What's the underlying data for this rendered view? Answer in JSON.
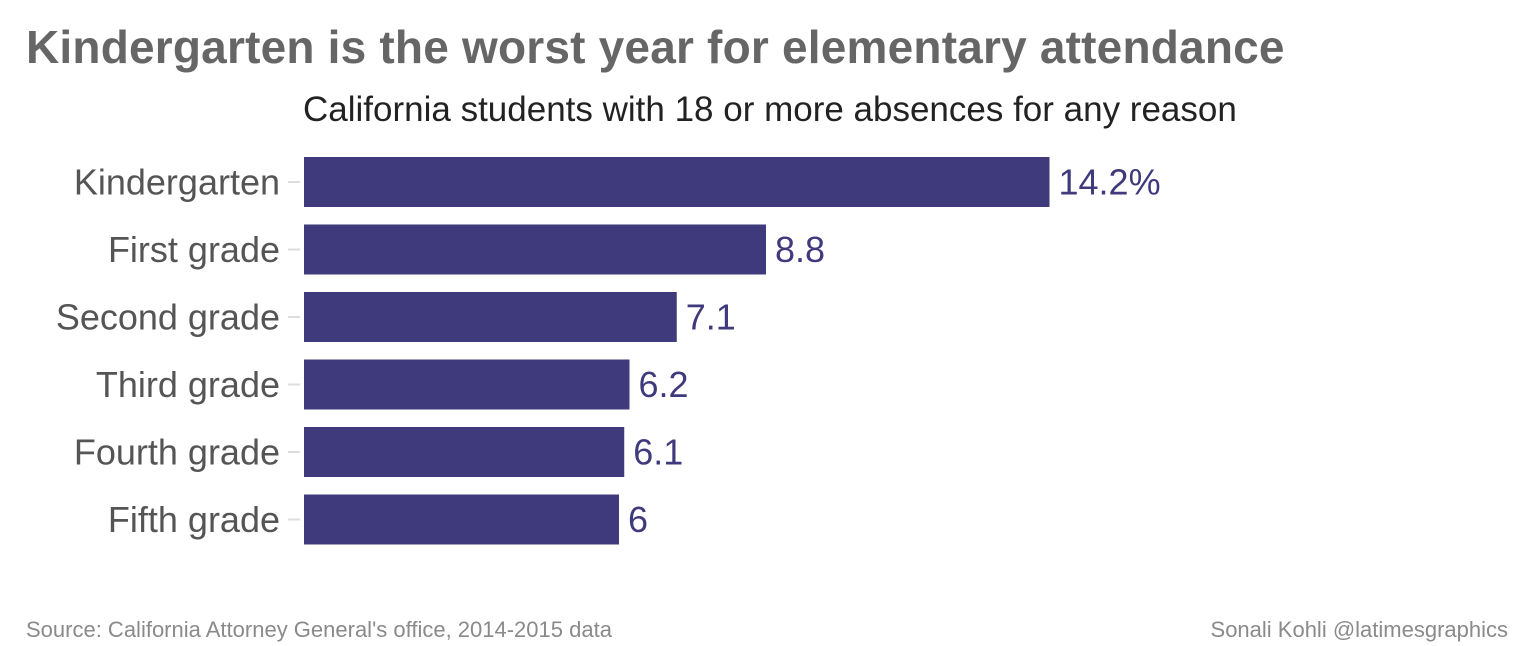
{
  "title": "Kindergarten is the worst year for elementary attendance",
  "subtitle": "California students with 18 or more absences for any reason",
  "source": "Source: California Attorney General's office, 2014-2015 data",
  "credit": "Sonali Kohli @latimesgraphics",
  "colors": {
    "bar": "#3f3a7c",
    "value_label": "#3f3a7c",
    "category_label": "#555555",
    "tick": "#dddddd"
  },
  "chart_data": {
    "type": "bar",
    "orientation": "horizontal",
    "categories": [
      "Kindergarten",
      "First grade",
      "Second grade",
      "Third grade",
      "Fourth grade",
      "Fifth grade"
    ],
    "values": [
      14.2,
      8.8,
      7.1,
      6.2,
      6.1,
      6
    ],
    "value_labels": [
      "14.2%",
      "8.8",
      "7.1",
      "6.2",
      "6.1",
      "6"
    ],
    "unit": "%",
    "xlim": [
      0,
      25
    ],
    "grid": false,
    "legend": "none"
  }
}
